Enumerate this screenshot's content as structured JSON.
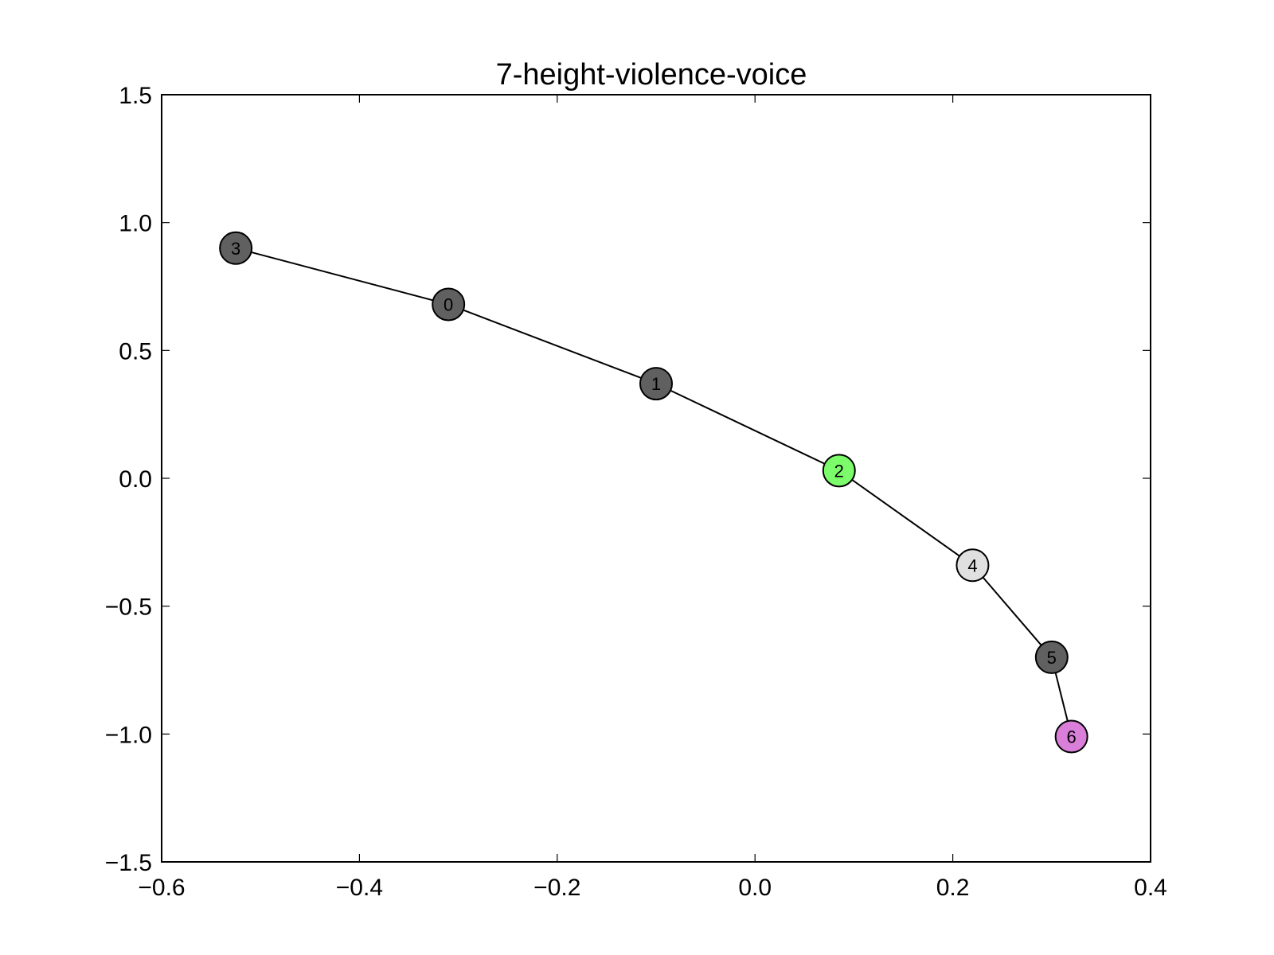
{
  "chart_data": {
    "type": "scatter",
    "title": "7-height-violence-voice",
    "xlabel": "",
    "ylabel": "",
    "xlim": [
      -0.6,
      0.4
    ],
    "ylim": [
      -1.5,
      1.5
    ],
    "x_ticks": [
      "−0.6",
      "−0.4",
      "−0.2",
      "0.0",
      "0.2",
      "0.4"
    ],
    "x_tick_values": [
      -0.6,
      -0.4,
      -0.2,
      0.0,
      0.2,
      0.4
    ],
    "y_ticks": [
      "−1.5",
      "−1.0",
      "−0.5",
      "0.0",
      "0.5",
      "1.0",
      "1.5"
    ],
    "y_tick_values": [
      -1.5,
      -1.0,
      -0.5,
      0.0,
      0.5,
      1.0,
      1.5
    ],
    "grid": false,
    "legend": "none",
    "nodes": [
      {
        "label": "0",
        "x": -0.31,
        "y": 0.68,
        "color": "#606060"
      },
      {
        "label": "1",
        "x": -0.1,
        "y": 0.37,
        "color": "#606060"
      },
      {
        "label": "2",
        "x": 0.085,
        "y": 0.03,
        "color": "#7cfc6a"
      },
      {
        "label": "3",
        "x": -0.525,
        "y": 0.9,
        "color": "#606060"
      },
      {
        "label": "4",
        "x": 0.22,
        "y": -0.34,
        "color": "#e0e0e0"
      },
      {
        "label": "5",
        "x": 0.3,
        "y": -0.7,
        "color": "#606060"
      },
      {
        "label": "6",
        "x": 0.32,
        "y": -1.01,
        "color": "#d97ed9"
      }
    ],
    "edges": [
      [
        3,
        0
      ],
      [
        0,
        1
      ],
      [
        1,
        2
      ],
      [
        2,
        4
      ],
      [
        4,
        5
      ],
      [
        5,
        6
      ]
    ]
  }
}
